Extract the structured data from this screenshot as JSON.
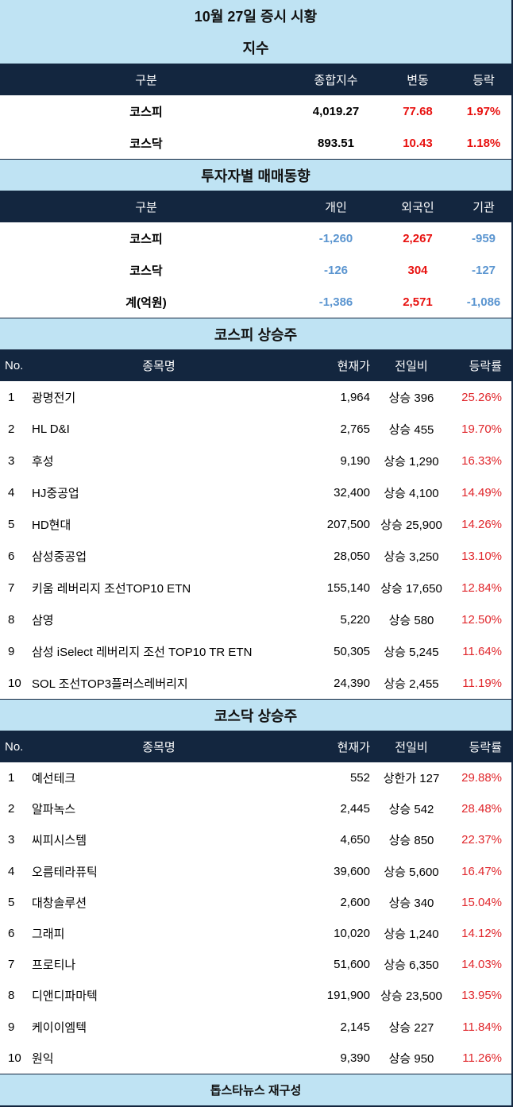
{
  "title": "10월 27일 증시 시황",
  "index": {
    "section_title": "지수",
    "headers": [
      "구분",
      "종합지수",
      "변동",
      "등락"
    ],
    "rows": [
      {
        "label": "코스피",
        "value": "4,019.27",
        "change": "77.68",
        "rate": "1.97%"
      },
      {
        "label": "코스닥",
        "value": "893.51",
        "change": "10.43",
        "rate": "1.18%"
      }
    ]
  },
  "investors": {
    "section_title": "투자자별 매매동향",
    "headers": [
      "구분",
      "개인",
      "외국인",
      "기관"
    ],
    "rows": [
      {
        "label": "코스피",
        "individual": "-1,260",
        "foreign": "2,267",
        "institution": "-959"
      },
      {
        "label": "코스닥",
        "individual": "-126",
        "foreign": "304",
        "institution": "-127"
      },
      {
        "label": "계(억원)",
        "individual": "-1,386",
        "foreign": "2,571",
        "institution": "-1,086"
      }
    ]
  },
  "kospi_gainers": {
    "section_title": "코스피 상승주",
    "headers": [
      "No.",
      "종목명",
      "현재가",
      "전일비",
      "등락률"
    ],
    "rows": [
      {
        "no": "1",
        "name": "광명전기",
        "price": "1,964",
        "change": "상승 396",
        "rate": "25.26%"
      },
      {
        "no": "2",
        "name": "HL D&I",
        "price": "2,765",
        "change": "상승 455",
        "rate": "19.70%"
      },
      {
        "no": "3",
        "name": "후성",
        "price": "9,190",
        "change": "상승 1,290",
        "rate": "16.33%"
      },
      {
        "no": "4",
        "name": "HJ중공업",
        "price": "32,400",
        "change": "상승 4,100",
        "rate": "14.49%"
      },
      {
        "no": "5",
        "name": "HD현대",
        "price": "207,500",
        "change": "상승 25,900",
        "rate": "14.26%"
      },
      {
        "no": "6",
        "name": "삼성중공업",
        "price": "28,050",
        "change": "상승 3,250",
        "rate": "13.10%"
      },
      {
        "no": "7",
        "name": "키움 레버리지 조선TOP10 ETN",
        "price": "155,140",
        "change": "상승 17,650",
        "rate": "12.84%"
      },
      {
        "no": "8",
        "name": "삼영",
        "price": "5,220",
        "change": "상승 580",
        "rate": "12.50%"
      },
      {
        "no": "9",
        "name": "삼성 iSelect 레버리지 조선 TOP10 TR ETN",
        "price": "50,305",
        "change": "상승 5,245",
        "rate": "11.64%"
      },
      {
        "no": "10",
        "name": "SOL 조선TOP3플러스레버리지",
        "price": "24,390",
        "change": "상승 2,455",
        "rate": "11.19%"
      }
    ]
  },
  "kosdaq_gainers": {
    "section_title": "코스닥 상승주",
    "headers": [
      "No.",
      "종목명",
      "현재가",
      "전일비",
      "등락률"
    ],
    "rows": [
      {
        "no": "1",
        "name": "예선테크",
        "price": "552",
        "change": "상한가 127",
        "rate": "29.88%"
      },
      {
        "no": "2",
        "name": "알파녹스",
        "price": "2,445",
        "change": "상승 542",
        "rate": "28.48%"
      },
      {
        "no": "3",
        "name": "씨피시스템",
        "price": "4,650",
        "change": "상승 850",
        "rate": "22.37%"
      },
      {
        "no": "4",
        "name": "오름테라퓨틱",
        "price": "39,600",
        "change": "상승 5,600",
        "rate": "16.47%"
      },
      {
        "no": "5",
        "name": "대창솔루션",
        "price": "2,600",
        "change": "상승 340",
        "rate": "15.04%"
      },
      {
        "no": "6",
        "name": "그래피",
        "price": "10,020",
        "change": "상승 1,240",
        "rate": "14.12%"
      },
      {
        "no": "7",
        "name": "프로티나",
        "price": "51,600",
        "change": "상승 6,350",
        "rate": "14.03%"
      },
      {
        "no": "8",
        "name": "디앤디파마텍",
        "price": "191,900",
        "change": "상승 23,500",
        "rate": "13.95%"
      },
      {
        "no": "9",
        "name": "케이이엠텍",
        "price": "2,145",
        "change": "상승 227",
        "rate": "11.84%"
      },
      {
        "no": "10",
        "name": "원익",
        "price": "9,390",
        "change": "상승 950",
        "rate": "11.26%"
      }
    ]
  },
  "footer": "톱스타뉴스 재구성",
  "colors": {
    "band": "#bfe3f3",
    "header": "#13263f",
    "up": "#e8110f",
    "down": "#5b95d0"
  }
}
